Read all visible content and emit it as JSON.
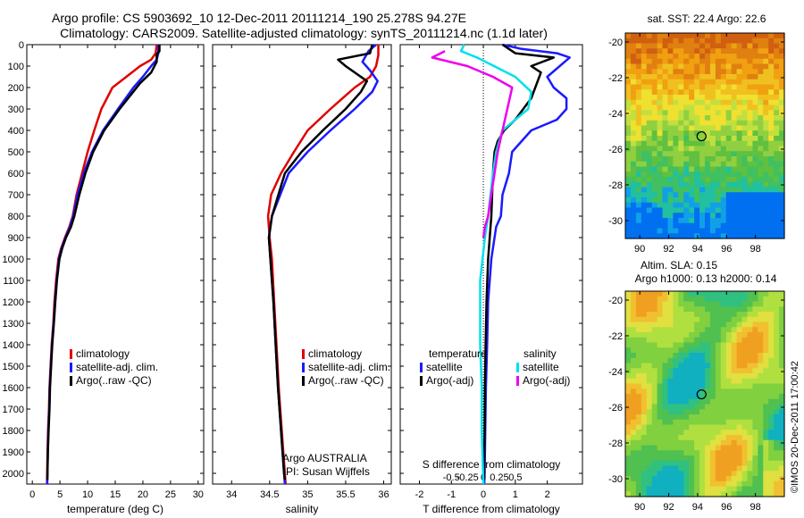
{
  "header": {
    "title_line1": "Argo profile: CS 5903692_10 12-Dec-2011 20111214_190 25.278S 94.27E",
    "title_line2": "Climatology: CARS2009. Satellite-adjusted climatology: synTS_20111214.nc (1.1d later)"
  },
  "footer": {
    "credit": "©IMOS 20-Dec-2011 17:00:42"
  },
  "colors": {
    "climatology": "#e00000",
    "satellite": "#1a1aff",
    "argo": "#000000",
    "salinity_satellite": "#00e0ee",
    "salinity_argo": "#ee00ee"
  },
  "chart_data": [
    {
      "type": "line",
      "id": "temperature",
      "xlabel": "temperature (deg C)",
      "ylabel": "",
      "xlim": [
        -1,
        31
      ],
      "ylim": [
        2050,
        0
      ],
      "xticks": [
        0,
        5,
        10,
        15,
        20,
        25,
        30
      ],
      "xtick_labels": [
        "0",
        "5",
        "10",
        "15",
        "20",
        "25",
        "30"
      ],
      "yticks": [
        0,
        100,
        200,
        300,
        400,
        500,
        600,
        700,
        800,
        900,
        1000,
        1100,
        1200,
        1300,
        1400,
        1500,
        1600,
        1700,
        1800,
        1900,
        2000
      ],
      "ytick_labels": [
        "0",
        "100",
        "200",
        "300",
        "400",
        "500",
        "600",
        "700",
        "800",
        "900",
        "1000",
        "1100",
        "1200",
        "1300",
        "1400",
        "1500",
        "1600",
        "1700",
        "1800",
        "1900",
        "2000"
      ],
      "legend": [
        "climatology",
        "satellite-adj. clim.",
        "Argo(..raw -QC)"
      ],
      "series": [
        {
          "name": "climatology",
          "color": "#e00000",
          "x": [
            22.5,
            22.3,
            21.5,
            19.5,
            17,
            14.5,
            12.5,
            11.2,
            10,
            9,
            8,
            7.3,
            6.7,
            5.9,
            5.2,
            4.7,
            4.3,
            4.0,
            3.8,
            3.5,
            3.3,
            3.1,
            3.0,
            2.85,
            2.75,
            2.65
          ],
          "y": [
            0,
            40,
            70,
            100,
            150,
            200,
            300,
            400,
            500,
            600,
            700,
            800,
            850,
            900,
            950,
            1000,
            1100,
            1200,
            1300,
            1400,
            1500,
            1600,
            1700,
            1800,
            1900,
            2050
          ]
        },
        {
          "name": "satellite-adj. clim.",
          "color": "#1a1aff",
          "x": [
            22.8,
            22.8,
            22.5,
            21.5,
            20,
            18.3,
            15.5,
            12.8,
            10.8,
            9.3,
            8.2,
            7.4,
            6.8,
            6.0,
            5.3,
            4.8,
            4.4,
            4.1,
            3.85,
            3.55,
            3.35,
            3.15,
            3.05,
            2.9,
            2.8,
            2.7
          ],
          "y": [
            0,
            40,
            70,
            100,
            150,
            200,
            300,
            400,
            500,
            600,
            700,
            800,
            850,
            900,
            950,
            1000,
            1100,
            1200,
            1300,
            1400,
            1500,
            1600,
            1700,
            1800,
            1900,
            2050
          ]
        },
        {
          "name": "Argo(..raw -QC)",
          "color": "#000000",
          "x": [
            23.0,
            23.0,
            22.5,
            22.5,
            21.5,
            19.5,
            15.8,
            13.0,
            11.0,
            9.6,
            8.5,
            7.6,
            7.0,
            6.1,
            5.4,
            4.9,
            4.45,
            4.15,
            3.9,
            3.6,
            3.4,
            3.2,
            3.1,
            2.95,
            2.82,
            2.72
          ],
          "y": [
            0,
            30,
            45,
            80,
            130,
            180,
            300,
            400,
            500,
            600,
            700,
            800,
            850,
            900,
            950,
            1000,
            1100,
            1200,
            1300,
            1400,
            1500,
            1600,
            1700,
            1800,
            1900,
            2030
          ]
        }
      ]
    },
    {
      "type": "line",
      "id": "salinity",
      "xlabel": "salinity",
      "ylabel": "",
      "xlim": [
        33.75,
        36.1
      ],
      "ylim": [
        2050,
        0
      ],
      "xticks": [
        34,
        34.5,
        35,
        35.5,
        36
      ],
      "xtick_labels": [
        "34",
        "34.5",
        "35",
        "35.5",
        "36"
      ],
      "legend": [
        "climatology",
        "satellite-adj. clim.",
        "Argo(..raw -QC)"
      ],
      "annotation": [
        "Argo AUSTRALIA",
        "PI: Susan Wijffels"
      ],
      "series": [
        {
          "name": "climatology",
          "color": "#e00000",
          "x": [
            35.93,
            35.93,
            35.9,
            35.82,
            35.62,
            35.3,
            35.0,
            34.82,
            34.65,
            34.52,
            34.48,
            34.5,
            34.53,
            34.56,
            34.59,
            34.62,
            34.64,
            34.66,
            34.68,
            34.7,
            34.71
          ],
          "y": [
            0,
            50,
            100,
            150,
            200,
            300,
            400,
            500,
            600,
            700,
            800,
            900,
            1000,
            1200,
            1400,
            1600,
            1700,
            1800,
            1900,
            2000,
            2050
          ]
        },
        {
          "name": "satellite-adj. clim.",
          "color": "#1a1aff",
          "x": [
            35.9,
            35.8,
            35.72,
            35.82,
            35.92,
            35.85,
            35.62,
            35.3,
            35.0,
            34.75,
            34.53,
            34.49,
            34.51,
            34.55,
            34.58,
            34.61,
            34.63,
            34.65,
            34.67,
            34.69,
            34.7
          ],
          "y": [
            0,
            30,
            80,
            120,
            170,
            220,
            300,
            400,
            500,
            600,
            800,
            900,
            1000,
            1200,
            1400,
            1600,
            1700,
            1800,
            1900,
            2000,
            2050
          ]
        },
        {
          "name": "Argo(..raw -QC)",
          "color": "#000000",
          "x": [
            35.85,
            35.82,
            35.4,
            35.5,
            35.78,
            35.7,
            35.5,
            35.2,
            34.92,
            34.7,
            34.53,
            34.49,
            34.51,
            34.55,
            34.58,
            34.61,
            34.63,
            34.65,
            34.67,
            34.69,
            34.7
          ],
          "y": [
            0,
            40,
            70,
            100,
            170,
            220,
            300,
            400,
            500,
            600,
            800,
            900,
            1000,
            1200,
            1400,
            1600,
            1700,
            1800,
            1900,
            2000,
            2030
          ]
        }
      ]
    },
    {
      "type": "line",
      "id": "difference",
      "xlabel": "T difference from climatology",
      "x2label": "S difference from climatology",
      "ylabel": "",
      "xlim": [
        -2.6,
        3.1
      ],
      "ylim": [
        2050,
        0
      ],
      "xticks": [
        -2,
        -1,
        0,
        1,
        2
      ],
      "xtick_labels": [
        "-2",
        "-1",
        "0",
        "1",
        "2"
      ],
      "x2ticks": [
        -1.0,
        -0.5,
        0,
        0.5,
        1.0
      ],
      "x2tick_labels": [
        "-0.5",
        "-0.25",
        "0",
        "0.25",
        "0.5"
      ],
      "legend_titles": [
        "temperature",
        "salinity"
      ],
      "legend": [
        "satellite",
        "Argo(-adj)",
        "satellite",
        "Argo(-adj)"
      ],
      "series": [
        {
          "name": "temperature satellite",
          "color": "#1a1aff",
          "x": [
            0.6,
            1.2,
            2.3,
            2.7,
            2.0,
            2.2,
            2.6,
            2.6,
            2.3,
            1.5,
            0.9,
            0.8,
            0.6,
            0.55,
            0.4,
            0.35,
            0.25,
            0.2,
            0.15,
            0.12,
            0.1,
            0.08,
            0.06,
            0.04,
            0.03
          ],
          "y": [
            0,
            20,
            40,
            60,
            150,
            200,
            250,
            300,
            350,
            400,
            500,
            600,
            700,
            800,
            850,
            900,
            1000,
            1100,
            1200,
            1400,
            1500,
            1600,
            1800,
            2000,
            2050
          ]
        },
        {
          "name": "temperature Argo(-adj)",
          "color": "#000000",
          "x": [
            0.6,
            1.0,
            2.2,
            1.5,
            1.8,
            1.7,
            1.5,
            1.0,
            0.65,
            0.45,
            0.35,
            0.3,
            0.25,
            0.2,
            0.15,
            0.1,
            0.07,
            0.05,
            0.04,
            0.03,
            0.02
          ],
          "y": [
            0,
            40,
            60,
            100,
            130,
            170,
            250,
            350,
            400,
            450,
            500,
            600,
            800,
            900,
            1000,
            1200,
            1400,
            1600,
            1800,
            1900,
            2030
          ]
        },
        {
          "name": "salinity satellite",
          "color": "#00e0ee",
          "x": [
            -0.6,
            -0.7,
            -0.2,
            1.0,
            1.5,
            1.4,
            1.0,
            0.6,
            0.4,
            0.3,
            0.15,
            0.05,
            -0.1,
            -0.1,
            -0.05,
            -0.05,
            0
          ],
          "y": [
            0,
            30,
            60,
            150,
            220,
            300,
            350,
            400,
            500,
            600,
            800,
            900,
            1100,
            1400,
            1600,
            1800,
            2050
          ]
        },
        {
          "name": "salinity Argo(-adj)",
          "color": "#ee00ee",
          "x": [
            -1.2,
            -1.6,
            -0.5,
            0.3,
            0.9,
            0.75,
            0.6,
            0.45,
            0.35,
            0.25,
            0.15,
            0.05,
            0.0
          ],
          "y": [
            30,
            60,
            100,
            150,
            200,
            300,
            400,
            500,
            600,
            700,
            800,
            850,
            900
          ]
        }
      ]
    },
    {
      "type": "heatmap",
      "id": "sst_map",
      "title": "sat. SST: 22.4  Argo: 22.6",
      "xlim": [
        89,
        100
      ],
      "ylim": [
        -31,
        -19.5
      ],
      "xticks": [
        90,
        92,
        94,
        96,
        98
      ],
      "xtick_labels": [
        "90",
        "92",
        "94",
        "96",
        "98"
      ],
      "yticks": [
        -20,
        -22,
        -24,
        -26,
        -28,
        -30
      ],
      "ytick_labels": [
        "-20",
        "-22",
        "-24",
        "-26",
        "-28",
        "-30"
      ],
      "marker": {
        "lon": 94.27,
        "lat": -25.278
      },
      "palette": [
        "#0070f0",
        "#10a0e8",
        "#20c0a0",
        "#40c060",
        "#60c040",
        "#90d040",
        "#c0e040",
        "#f0e030",
        "#f0c020",
        "#f0a010",
        "#e08010",
        "#d06010"
      ]
    },
    {
      "type": "heatmap",
      "id": "sla_map",
      "title": "Altim. SLA: 0.15",
      "subtitle": "Argo h1000: 0.13 h2000: 0.14",
      "xlim": [
        89,
        100
      ],
      "ylim": [
        -31,
        -19.5
      ],
      "xticks": [
        90,
        92,
        94,
        96,
        98
      ],
      "xtick_labels": [
        "90",
        "92",
        "94",
        "96",
        "98"
      ],
      "yticks": [
        -20,
        -22,
        -24,
        -26,
        -28,
        -30
      ],
      "ytick_labels": [
        "-20",
        "-22",
        "-24",
        "-26",
        "-28",
        "-30"
      ],
      "marker": {
        "lon": 94.27,
        "lat": -25.278
      },
      "palette": [
        "#10b0c0",
        "#30c080",
        "#50c050",
        "#80d040",
        "#b0e040",
        "#e0e040",
        "#f0c030",
        "#f0a020"
      ]
    }
  ]
}
